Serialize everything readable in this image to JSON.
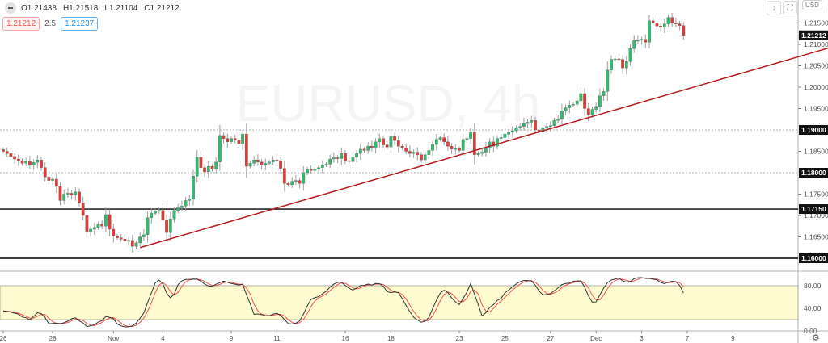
{
  "header": {
    "ohlc": {
      "open": "O1.21438",
      "high": "H1.21518",
      "low": "L1.21104",
      "close": "C1.21212"
    },
    "sell_price": "1.21212",
    "spread": "2.5",
    "buy_price": "1.21237"
  },
  "toolbar": {
    "scroll_icon": "↓",
    "fullscreen_icon": "⛶",
    "currency": "USD",
    "settings_icon": "⚙"
  },
  "colors": {
    "up": "#26a69a",
    "up_body": "#2dbd6e",
    "down": "#e53935",
    "wick": "#9e9e9e",
    "trendline": "#b71c1c",
    "stoch_k": "#333333",
    "stoch_d": "#ef5350",
    "stoch_band": "#fffbd0"
  },
  "chart_data": {
    "type": "candlestick",
    "watermark": "EURUSD, 4h",
    "ylim": [
      1.158,
      1.221
    ],
    "y_ticks": [
      "1.21500",
      "1.21000",
      "1.20500",
      "1.20000",
      "1.19500",
      "1.18500",
      "1.17500",
      "1.17000",
      "1.16500"
    ],
    "y_tick_values": [
      1.215,
      1.21,
      1.205,
      1.2,
      1.195,
      1.185,
      1.175,
      1.17,
      1.165
    ],
    "x_ticks": [
      {
        "label": "26",
        "index": 0
      },
      {
        "label": "28",
        "index": 13
      },
      {
        "label": "Nov",
        "index": 29
      },
      {
        "label": "4",
        "index": 42
      },
      {
        "label": "9",
        "index": 60
      },
      {
        "label": "11",
        "index": 72
      },
      {
        "label": "16",
        "index": 90
      },
      {
        "label": "18",
        "index": 102
      },
      {
        "label": "23",
        "index": 120
      },
      {
        "label": "25",
        "index": 132
      },
      {
        "label": "27",
        "index": 144
      },
      {
        "label": "Dec",
        "index": 156
      },
      {
        "label": "3",
        "index": 168
      },
      {
        "label": "7",
        "index": 180
      },
      {
        "label": "9",
        "index": 192
      }
    ],
    "closes": [
      1.185,
      1.1845,
      1.1838,
      1.1832,
      1.1828,
      1.1822,
      1.1826,
      1.1818,
      1.1824,
      1.183,
      1.1812,
      1.179,
      1.1782,
      1.1785,
      1.1768,
      1.1735,
      1.175,
      1.1752,
      1.1748,
      1.1755,
      1.173,
      1.17,
      1.1662,
      1.1668,
      1.1672,
      1.168,
      1.1675,
      1.1702,
      1.1668,
      1.1652,
      1.1648,
      1.1645,
      1.164,
      1.1642,
      1.1628,
      1.1636,
      1.165,
      1.1655,
      1.1695,
      1.1705,
      1.171,
      1.1712,
      1.169,
      1.166,
      1.1692,
      1.1712,
      1.1718,
      1.1722,
      1.1735,
      1.1738,
      1.1792,
      1.1836,
      1.1812,
      1.1802,
      1.1815,
      1.1808,
      1.1825,
      1.1887,
      1.188,
      1.1872,
      1.188,
      1.1876,
      1.1868,
      1.189,
      1.1815,
      1.1822,
      1.183,
      1.1825,
      1.1818,
      1.1822,
      1.1825,
      1.183,
      1.1828,
      1.181,
      1.1775,
      1.1772,
      1.178,
      1.1782,
      1.1775,
      1.18,
      1.1808,
      1.1805,
      1.1808,
      1.1812,
      1.1818,
      1.182,
      1.1832,
      1.1835,
      1.1833,
      1.1845,
      1.1828,
      1.1826,
      1.1836,
      1.1845,
      1.1855,
      1.1852,
      1.1862,
      1.1858,
      1.1872,
      1.188,
      1.1865,
      1.186,
      1.1885,
      1.1875,
      1.1862,
      1.1858,
      1.185,
      1.1845,
      1.1848,
      1.1842,
      1.183,
      1.1842,
      1.1852,
      1.1866,
      1.1878,
      1.1882,
      1.1872,
      1.1862,
      1.1855,
      1.1856,
      1.1852,
      1.1878,
      1.188,
      1.1895,
      1.1842,
      1.1845,
      1.1848,
      1.1858,
      1.1872,
      1.1862,
      1.188,
      1.1882,
      1.189,
      1.1895,
      1.1898,
      1.1905,
      1.1908,
      1.1915,
      1.1918,
      1.1922,
      1.19,
      1.1896,
      1.1905,
      1.1908,
      1.191,
      1.1922,
      1.1925,
      1.1945,
      1.1952,
      1.1958,
      1.196,
      1.1968,
      1.1985,
      1.195,
      1.1935,
      1.1948,
      1.1955,
      1.198,
      1.199,
      1.204,
      1.2065,
      1.2066,
      1.2065,
      1.2045,
      1.206,
      1.209,
      1.211,
      1.211,
      1.2112,
      1.2105,
      1.2155,
      1.215,
      1.2143,
      1.214,
      1.2148,
      1.2163,
      1.215,
      1.2148,
      1.21438,
      1.21212
    ],
    "last_candle": {
      "open": 1.21438,
      "high": 1.21518,
      "low": 1.21104,
      "close": 1.21212
    },
    "horizontal_levels": [
      {
        "price": 1.19,
        "label": "1.19000",
        "style": "dotted"
      },
      {
        "price": 1.18,
        "label": "1.18000",
        "style": "dotted"
      },
      {
        "price": 1.1715,
        "label": "1.17150",
        "style": "solid"
      },
      {
        "price": 1.16,
        "label": "1.16000",
        "style": "solid"
      }
    ],
    "current_price_label": "1.21212",
    "trendline": {
      "start": {
        "index": 36,
        "price": 1.1625
      },
      "end": {
        "index": 217,
        "price": 1.2091
      }
    },
    "stochastic": {
      "ylim": [
        0,
        100
      ],
      "band": [
        20,
        80
      ],
      "y_ticks": [
        "80.00",
        "40.00",
        "0.00"
      ],
      "y_tick_values": [
        80,
        40,
        0
      ]
    }
  }
}
